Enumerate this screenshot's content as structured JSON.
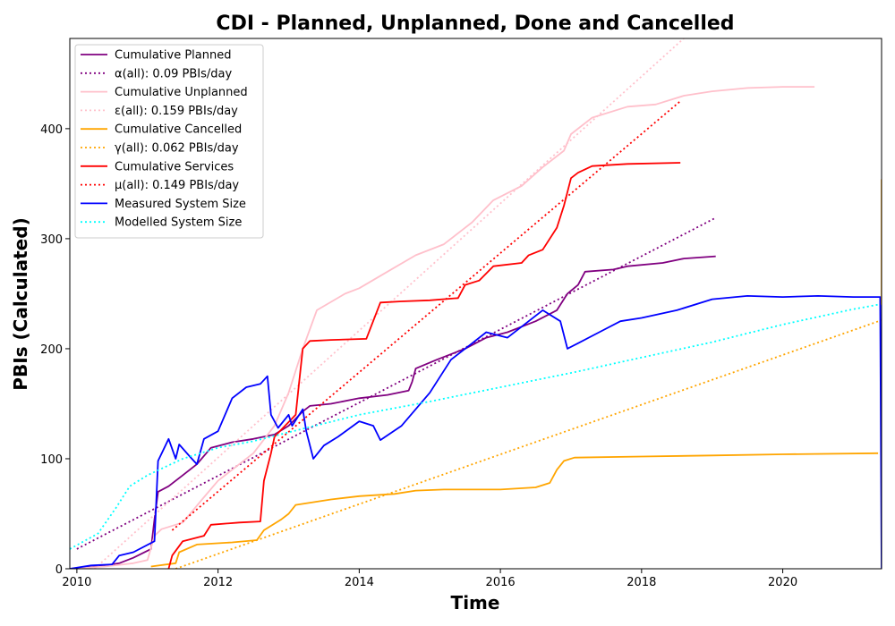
{
  "chart_data": {
    "type": "line",
    "title": "CDI - Planned, Unplanned, Done  and Cancelled",
    "xlabel": "Time",
    "ylabel": "PBIs (Calculated)",
    "xlim": [
      2009.9,
      2021.4
    ],
    "ylim": [
      0,
      482
    ],
    "xticks": [
      2010,
      2012,
      2014,
      2016,
      2018,
      2020
    ],
    "yticks": [
      0,
      100,
      200,
      300,
      400
    ],
    "legend_position": "upper-left",
    "series": [
      {
        "name": "Cumulative Planned",
        "color": "#800080",
        "style": "solid",
        "points": [
          [
            2009.9,
            0
          ],
          [
            2010.3,
            2
          ],
          [
            2010.6,
            5
          ],
          [
            2010.8,
            10
          ],
          [
            2011.05,
            18
          ],
          [
            2011.1,
            45
          ],
          [
            2011.15,
            70
          ],
          [
            2011.3,
            75
          ],
          [
            2011.5,
            85
          ],
          [
            2011.7,
            95
          ],
          [
            2011.9,
            110
          ],
          [
            2012.2,
            115
          ],
          [
            2012.5,
            118
          ],
          [
            2012.8,
            122
          ],
          [
            2013.0,
            130
          ],
          [
            2013.2,
            143
          ],
          [
            2013.3,
            148
          ],
          [
            2013.6,
            150
          ],
          [
            2014.0,
            155
          ],
          [
            2014.4,
            158
          ],
          [
            2014.7,
            162
          ],
          [
            2014.75,
            170
          ],
          [
            2014.8,
            182
          ],
          [
            2015.1,
            190
          ],
          [
            2015.5,
            200
          ],
          [
            2015.8,
            210
          ],
          [
            2016.1,
            215
          ],
          [
            2016.5,
            225
          ],
          [
            2016.8,
            235
          ],
          [
            2016.95,
            250
          ],
          [
            2017.1,
            258
          ],
          [
            2017.2,
            270
          ],
          [
            2017.6,
            272
          ],
          [
            2017.8,
            275
          ],
          [
            2018.3,
            278
          ],
          [
            2018.6,
            282
          ],
          [
            2019.05,
            284
          ]
        ]
      },
      {
        "name": "α(all): 0.09 PBIs/day",
        "color": "#800080",
        "style": "dotted",
        "points": [
          [
            2010.0,
            18
          ],
          [
            2019.05,
            319
          ]
        ]
      },
      {
        "name": "Cumulative Unplanned",
        "color": "#ffc0cb",
        "style": "solid",
        "points": [
          [
            2009.9,
            0
          ],
          [
            2010.4,
            2
          ],
          [
            2010.8,
            5
          ],
          [
            2011.0,
            8
          ],
          [
            2011.1,
            30
          ],
          [
            2011.2,
            36
          ],
          [
            2011.5,
            42
          ],
          [
            2011.8,
            65
          ],
          [
            2012.0,
            80
          ],
          [
            2012.3,
            95
          ],
          [
            2012.5,
            105
          ],
          [
            2012.8,
            130
          ],
          [
            2013.0,
            160
          ],
          [
            2013.2,
            200
          ],
          [
            2013.4,
            235
          ],
          [
            2013.8,
            250
          ],
          [
            2014.0,
            255
          ],
          [
            2014.4,
            270
          ],
          [
            2014.8,
            285
          ],
          [
            2015.2,
            295
          ],
          [
            2015.6,
            315
          ],
          [
            2015.9,
            335
          ],
          [
            2016.3,
            348
          ],
          [
            2016.6,
            365
          ],
          [
            2016.9,
            380
          ],
          [
            2017.0,
            395
          ],
          [
            2017.3,
            410
          ],
          [
            2017.8,
            420
          ],
          [
            2018.2,
            422
          ],
          [
            2018.6,
            430
          ],
          [
            2019.0,
            434
          ],
          [
            2019.5,
            437
          ],
          [
            2020.0,
            438
          ],
          [
            2020.45,
            438
          ]
        ]
      },
      {
        "name": "ε(all): 0.159 PBIs/day",
        "color": "#ffc0cb",
        "style": "dotted",
        "points": [
          [
            2010.25,
            0
          ],
          [
            2018.65,
            485
          ]
        ]
      },
      {
        "name": "Cumulative Cancelled",
        "color": "#ffa500",
        "style": "solid",
        "points": [
          [
            2011.05,
            2
          ],
          [
            2011.4,
            5
          ],
          [
            2011.45,
            15
          ],
          [
            2011.7,
            22
          ],
          [
            2012.2,
            24
          ],
          [
            2012.55,
            26
          ],
          [
            2012.65,
            35
          ],
          [
            2012.9,
            45
          ],
          [
            2013.0,
            50
          ],
          [
            2013.1,
            58
          ],
          [
            2013.6,
            63
          ],
          [
            2014.0,
            66
          ],
          [
            2014.5,
            68
          ],
          [
            2014.8,
            71
          ],
          [
            2015.2,
            72
          ],
          [
            2016.0,
            72
          ],
          [
            2016.5,
            74
          ],
          [
            2016.7,
            78
          ],
          [
            2016.8,
            90
          ],
          [
            2016.9,
            98
          ],
          [
            2017.05,
            101
          ],
          [
            2018.0,
            102
          ],
          [
            2019.0,
            103
          ],
          [
            2020.0,
            104
          ],
          [
            2021.35,
            105
          ]
        ]
      },
      {
        "name": "γ(all): 0.062 PBIs/day",
        "color": "#ffa500",
        "style": "dotted",
        "points": [
          [
            2011.4,
            0
          ],
          [
            2021.4,
            226
          ]
        ]
      },
      {
        "name": "Cumulative Services",
        "color": "#ff0000",
        "style": "solid",
        "points": [
          [
            2011.3,
            0
          ],
          [
            2011.35,
            12
          ],
          [
            2011.5,
            25
          ],
          [
            2011.8,
            30
          ],
          [
            2011.9,
            40
          ],
          [
            2012.3,
            42
          ],
          [
            2012.6,
            43
          ],
          [
            2012.65,
            80
          ],
          [
            2012.75,
            105
          ],
          [
            2012.8,
            120
          ],
          [
            2013.1,
            140
          ],
          [
            2013.15,
            170
          ],
          [
            2013.2,
            200
          ],
          [
            2013.3,
            207
          ],
          [
            2013.6,
            208
          ],
          [
            2014.1,
            209
          ],
          [
            2014.3,
            242
          ],
          [
            2014.6,
            243
          ],
          [
            2015.0,
            244
          ],
          [
            2015.4,
            246
          ],
          [
            2015.5,
            258
          ],
          [
            2015.7,
            262
          ],
          [
            2015.9,
            275
          ],
          [
            2016.3,
            278
          ],
          [
            2016.4,
            285
          ],
          [
            2016.6,
            290
          ],
          [
            2016.8,
            310
          ],
          [
            2016.9,
            330
          ],
          [
            2017.0,
            355
          ],
          [
            2017.1,
            360
          ],
          [
            2017.3,
            366
          ],
          [
            2017.8,
            368
          ],
          [
            2018.55,
            369
          ]
        ]
      },
      {
        "name": "μ(all): 0.149 PBIs/day",
        "color": "#ff0000",
        "style": "dotted",
        "points": [
          [
            2011.35,
            35
          ],
          [
            2018.55,
            425
          ]
        ]
      },
      {
        "name": "Measured System Size",
        "color": "#0000ff",
        "style": "solid",
        "points": [
          [
            2009.9,
            0
          ],
          [
            2010.2,
            3
          ],
          [
            2010.5,
            4
          ],
          [
            2010.6,
            12
          ],
          [
            2010.8,
            15
          ],
          [
            2011.1,
            25
          ],
          [
            2011.15,
            98
          ],
          [
            2011.3,
            118
          ],
          [
            2011.4,
            100
          ],
          [
            2011.45,
            113
          ],
          [
            2011.6,
            102
          ],
          [
            2011.7,
            95
          ],
          [
            2011.8,
            118
          ],
          [
            2012.0,
            125
          ],
          [
            2012.2,
            155
          ],
          [
            2012.4,
            165
          ],
          [
            2012.6,
            168
          ],
          [
            2012.7,
            175
          ],
          [
            2012.75,
            140
          ],
          [
            2012.85,
            128
          ],
          [
            2013.0,
            140
          ],
          [
            2013.05,
            130
          ],
          [
            2013.2,
            145
          ],
          [
            2013.25,
            125
          ],
          [
            2013.35,
            100
          ],
          [
            2013.5,
            112
          ],
          [
            2013.7,
            120
          ],
          [
            2014.0,
            134
          ],
          [
            2014.2,
            130
          ],
          [
            2014.3,
            117
          ],
          [
            2014.6,
            130
          ],
          [
            2014.8,
            145
          ],
          [
            2015.0,
            160
          ],
          [
            2015.3,
            190
          ],
          [
            2015.6,
            205
          ],
          [
            2015.8,
            215
          ],
          [
            2016.1,
            210
          ],
          [
            2016.3,
            220
          ],
          [
            2016.6,
            235
          ],
          [
            2016.85,
            225
          ],
          [
            2016.95,
            200
          ],
          [
            2017.1,
            205
          ],
          [
            2017.4,
            215
          ],
          [
            2017.7,
            225
          ],
          [
            2018.0,
            228
          ],
          [
            2018.5,
            235
          ],
          [
            2019.0,
            245
          ],
          [
            2019.5,
            248
          ],
          [
            2020.0,
            247
          ],
          [
            2020.5,
            248
          ],
          [
            2021.0,
            247
          ],
          [
            2021.38,
            247
          ],
          [
            2021.4,
            0
          ]
        ]
      },
      {
        "name": "Modelled System Size",
        "color": "#00ffff",
        "style": "dotted",
        "points": [
          [
            2009.9,
            18
          ],
          [
            2010.3,
            32
          ],
          [
            2010.55,
            55
          ],
          [
            2010.75,
            75
          ],
          [
            2011.0,
            85
          ],
          [
            2011.5,
            100
          ],
          [
            2012.0,
            110
          ],
          [
            2012.5,
            116
          ],
          [
            2013.0,
            124
          ],
          [
            2014.0,
            140
          ],
          [
            2015.0,
            152
          ],
          [
            2016.0,
            165
          ],
          [
            2017.0,
            178
          ],
          [
            2018.0,
            192
          ],
          [
            2019.0,
            206
          ],
          [
            2020.0,
            222
          ],
          [
            2021.0,
            236
          ],
          [
            2021.35,
            240
          ]
        ]
      }
    ],
    "annotations": [
      {
        "type": "vertical-segment",
        "x": 2021.4,
        "y_from": 240,
        "y_to": 354,
        "color": "#ffa500"
      }
    ]
  }
}
